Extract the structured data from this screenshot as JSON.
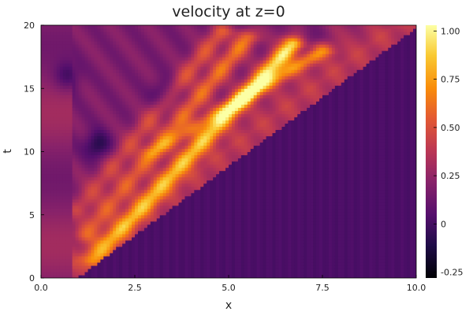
{
  "chart_data": {
    "type": "heatmap",
    "title": "velocity at z=0",
    "xlabel": "x",
    "ylabel": "t",
    "xlim": [
      0,
      10
    ],
    "ylim": [
      0,
      20
    ],
    "x_ticks": [
      "0.0",
      "2.5",
      "5.0",
      "7.5",
      "10.0"
    ],
    "x_tick_values": [
      0,
      2.5,
      5,
      7.5,
      10
    ],
    "y_ticks": [
      "0",
      "5",
      "10",
      "15",
      "20"
    ],
    "y_tick_values": [
      0,
      5,
      10,
      15,
      20
    ],
    "colorbar": {
      "colormap": "inferno",
      "range": [
        -0.28,
        1.03
      ],
      "ticks": [
        "-0.25",
        "0",
        "0.25",
        "0.50",
        "0.75",
        "1.00"
      ],
      "tick_values": [
        -0.25,
        0,
        0.25,
        0.5,
        0.75,
        1.0
      ]
    },
    "field_features": {
      "background_value": 0.02,
      "front_line": {
        "x0": 1.0,
        "t0": 0.3,
        "x1": 10.0,
        "t1": 20.0
      },
      "front_value": 0.45,
      "bright_streaks": [
        {
          "from": [
            1.4,
            1.5
          ],
          "to": [
            6.7,
            18.5
          ],
          "value": 1.0
        },
        {
          "from": [
            1.2,
            3.5
          ],
          "to": [
            5.5,
            19.0
          ],
          "value": 0.7
        },
        {
          "from": [
            1.0,
            5.5
          ],
          "to": [
            4.8,
            19.5
          ],
          "value": 0.6
        },
        {
          "from": [
            3.0,
            10.0
          ],
          "to": [
            7.5,
            18.0
          ],
          "value": 0.7
        }
      ],
      "dark_regions": [
        {
          "x": 1.5,
          "t": 10.5,
          "value": -0.25
        },
        {
          "x": 0.7,
          "t": 16.0,
          "value": -0.15
        },
        {
          "x": 3.3,
          "t": 14.5,
          "value": -0.2
        },
        {
          "x": 7.2,
          "t": 18.8,
          "value": -0.1
        }
      ]
    }
  }
}
